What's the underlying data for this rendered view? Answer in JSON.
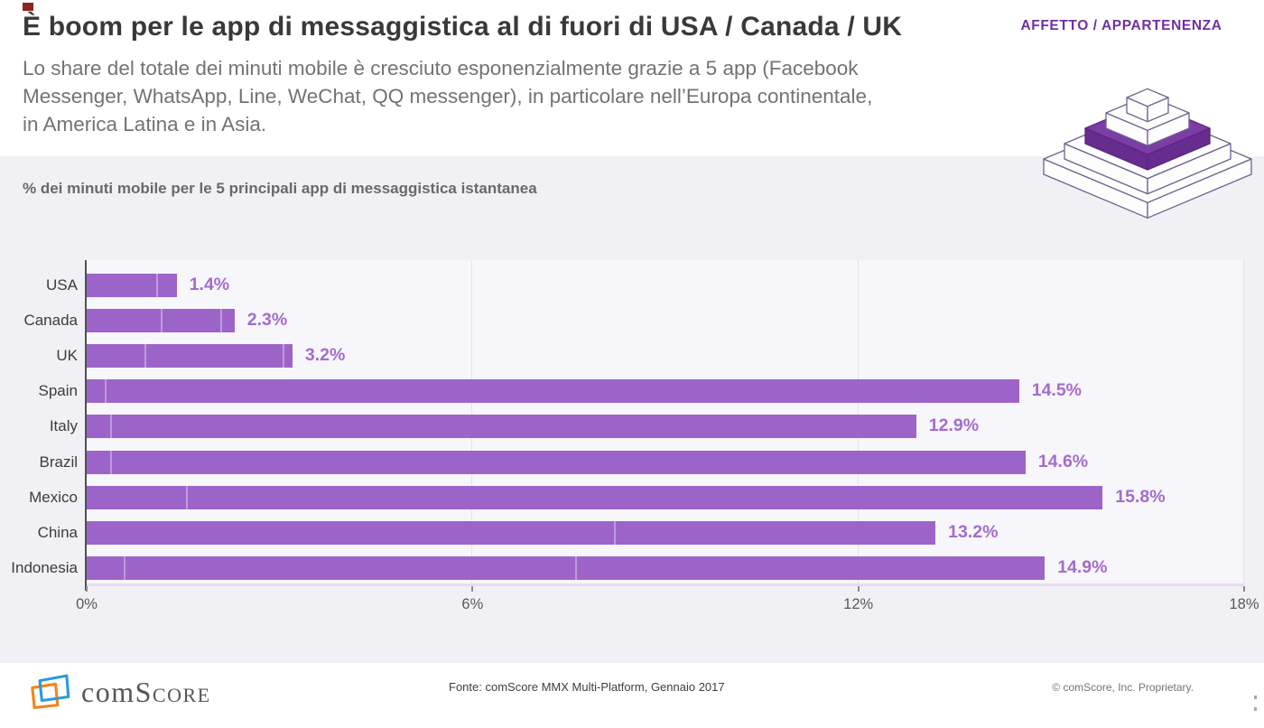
{
  "header": {
    "title": "È boom per le app di messaggistica al di fuori di USA / Canada / UK",
    "subtitle_lines": [
      "Lo share del totale dei minuti mobile è cresciuto esponenzialmente grazie a 5 app (Facebook",
      "Messenger, WhatsApp, Line, WeChat, QQ messenger), in particolare nell’Europa continentale,",
      "in America Latina e in Asia."
    ],
    "badge": "AFFETTO / APPARTENENZA"
  },
  "chart_data": {
    "type": "bar",
    "orientation": "horizontal",
    "title": "% dei minuti mobile per le 5 principali app di messaggistica istantanea",
    "categories": [
      "USA",
      "Canada",
      "UK",
      "Spain",
      "Italy",
      "Brazil",
      "Mexico",
      "China",
      "Indonesia"
    ],
    "values": [
      1.4,
      2.3,
      3.2,
      14.5,
      12.9,
      14.6,
      15.8,
      13.2,
      14.9
    ],
    "value_labels": [
      "1.4%",
      "2.3%",
      "3.2%",
      "14.5%",
      "12.9%",
      "14.6%",
      "15.8%",
      "13.2%",
      "14.9%"
    ],
    "xlim": [
      0,
      18
    ],
    "x_tick_values": [
      0,
      6,
      12,
      18
    ],
    "x_tick_labels": [
      "0%",
      "6%",
      "12%",
      "18%"
    ],
    "grid": "vertical",
    "legend": "none",
    "bar_color": "#9c64c8",
    "value_label_color": "#a46ccd",
    "segment_dividers": [
      [
        1.08
      ],
      [
        1.15,
        2.08
      ],
      [
        0.9,
        3.05
      ],
      [
        0.28
      ],
      [
        0.37
      ],
      [
        0.37
      ],
      [
        1.55
      ],
      [
        8.2
      ],
      [
        0.58,
        7.6
      ]
    ]
  },
  "footer": {
    "logo_prefix": "com",
    "logo_suffix": "Score",
    "source": "Fonte: comScore MMX Multi-Platform, Gennaio 2017",
    "copyright": "© comScore,  Inc.  Proprietary."
  }
}
